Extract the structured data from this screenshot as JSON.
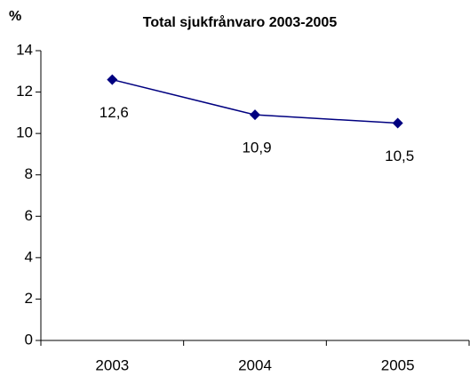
{
  "chart_data": {
    "type": "line",
    "title": "Total sjukfrånvaro 2003-2005",
    "y_label": "%",
    "categories": [
      "2003",
      "2004",
      "2005"
    ],
    "series": [
      {
        "name": "Total sjukfrånvaro",
        "color": "#000080",
        "values": [
          12.6,
          10.9,
          10.5
        ],
        "value_labels": [
          "12,6",
          "10,9",
          "10,5"
        ]
      }
    ],
    "ylim": [
      0,
      14
    ],
    "yticks": [
      0,
      2,
      4,
      6,
      8,
      10,
      12,
      14
    ],
    "grid": false,
    "legend": false
  }
}
